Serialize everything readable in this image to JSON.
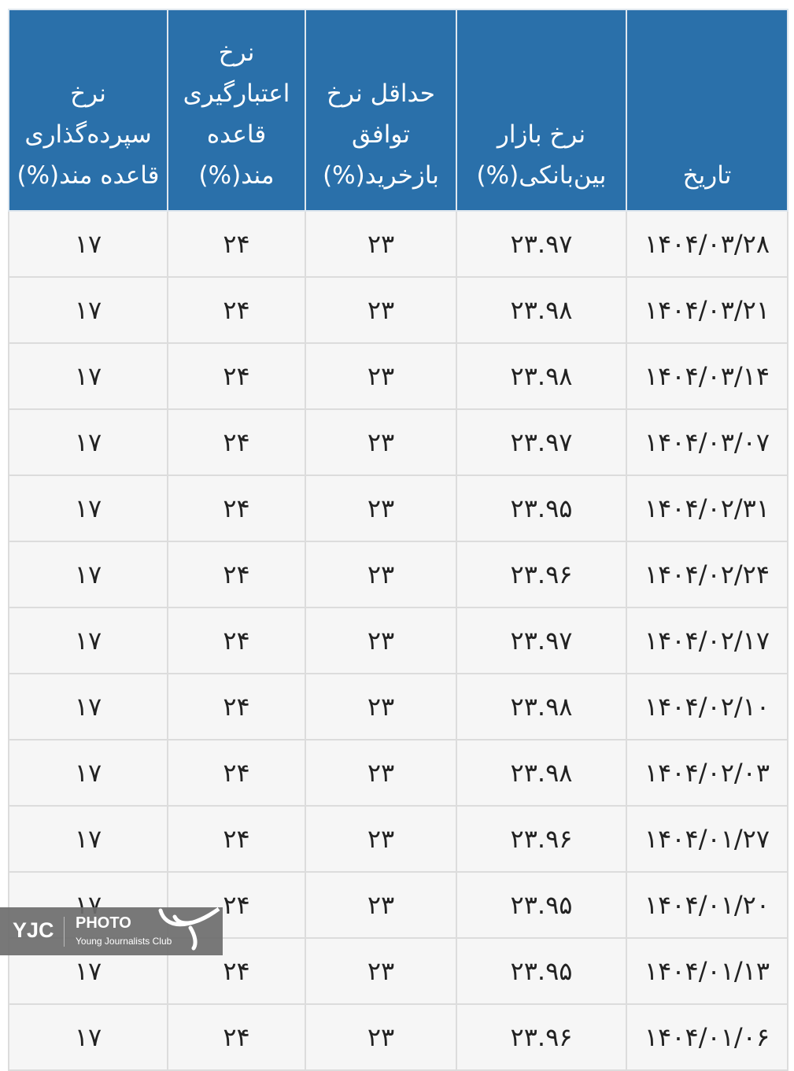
{
  "table": {
    "headers": [
      "تاریخ",
      "نرخ بازار بین‌بانکی(%)",
      "حداقل نرخ توافق بازخرید(%)",
      "نرخ اعتبارگیری قاعده مند(%)",
      "نرخ سپرده‌گذاری قاعده مند(%)"
    ],
    "rows": [
      [
        "۱۴۰۴/۰۳/۲۸",
        "۲۳.۹۷",
        "۲۳",
        "۲۴",
        "۱۷"
      ],
      [
        "۱۴۰۴/۰۳/۲۱",
        "۲۳.۹۸",
        "۲۳",
        "۲۴",
        "۱۷"
      ],
      [
        "۱۴۰۴/۰۳/۱۴",
        "۲۳.۹۸",
        "۲۳",
        "۲۴",
        "۱۷"
      ],
      [
        "۱۴۰۴/۰۳/۰۷",
        "۲۳.۹۷",
        "۲۳",
        "۲۴",
        "۱۷"
      ],
      [
        "۱۴۰۴/۰۲/۳۱",
        "۲۳.۹۵",
        "۲۳",
        "۲۴",
        "۱۷"
      ],
      [
        "۱۴۰۴/۰۲/۲۴",
        "۲۳.۹۶",
        "۲۳",
        "۲۴",
        "۱۷"
      ],
      [
        "۱۴۰۴/۰۲/۱۷",
        "۲۳.۹۷",
        "۲۳",
        "۲۴",
        "۱۷"
      ],
      [
        "۱۴۰۴/۰۲/۱۰",
        "۲۳.۹۸",
        "۲۳",
        "۲۴",
        "۱۷"
      ],
      [
        "۱۴۰۴/۰۲/۰۳",
        "۲۳.۹۸",
        "۲۳",
        "۲۴",
        "۱۷"
      ],
      [
        "۱۴۰۴/۰۱/۲۷",
        "۲۳.۹۶",
        "۲۳",
        "۲۴",
        "۱۷"
      ],
      [
        "۱۴۰۴/۰۱/۲۰",
        "۲۳.۹۵",
        "۲۳",
        "۲۴",
        "۱۷"
      ],
      [
        "۱۴۰۴/۰۱/۱۳",
        "۲۳.۹۵",
        "۲۳",
        "۲۴",
        "۱۷"
      ],
      [
        "۱۴۰۴/۰۱/۰۶",
        "۲۳.۹۶",
        "۲۳",
        "۲۴",
        "۱۷"
      ]
    ]
  },
  "watermark": {
    "brand": "YJC",
    "label": "PHOTO",
    "org": "Young Journalists Club"
  },
  "colors": {
    "header_bg": "#2a70aa",
    "row_bg": "#f6f6f6"
  }
}
